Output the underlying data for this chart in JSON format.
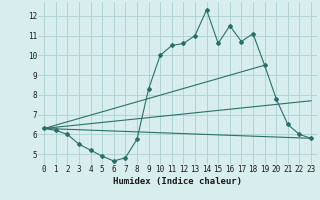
{
  "xlabel": "Humidex (Indice chaleur)",
  "xlim": [
    -0.5,
    23.5
  ],
  "ylim": [
    4.5,
    12.7
  ],
  "yticks": [
    5,
    6,
    7,
    8,
    9,
    10,
    11,
    12
  ],
  "xticks": [
    0,
    1,
    2,
    3,
    4,
    5,
    6,
    7,
    8,
    9,
    10,
    11,
    12,
    13,
    14,
    15,
    16,
    17,
    18,
    19,
    20,
    21,
    22,
    23
  ],
  "bg_color": "#d8eeee",
  "grid_color": "#aacfcf",
  "line_color": "#2a7068",
  "line1_x": [
    0,
    1,
    2,
    3,
    4,
    5,
    6,
    7,
    8,
    9,
    10,
    11,
    12,
    13,
    14,
    15,
    16,
    17,
    18,
    19,
    20,
    21,
    22,
    23
  ],
  "line1_y": [
    6.3,
    6.2,
    6.0,
    5.5,
    5.2,
    4.9,
    4.65,
    4.82,
    5.75,
    8.3,
    10.0,
    10.5,
    10.6,
    11.0,
    12.3,
    10.6,
    11.5,
    10.7,
    11.1,
    9.5,
    7.8,
    6.5,
    6.0,
    5.8
  ],
  "line2_x": [
    0,
    19
  ],
  "line2_y": [
    6.3,
    9.5
  ],
  "line3_x": [
    0,
    23
  ],
  "line3_y": [
    6.3,
    7.7
  ],
  "line4_x": [
    0,
    23
  ],
  "line4_y": [
    6.3,
    5.8
  ]
}
